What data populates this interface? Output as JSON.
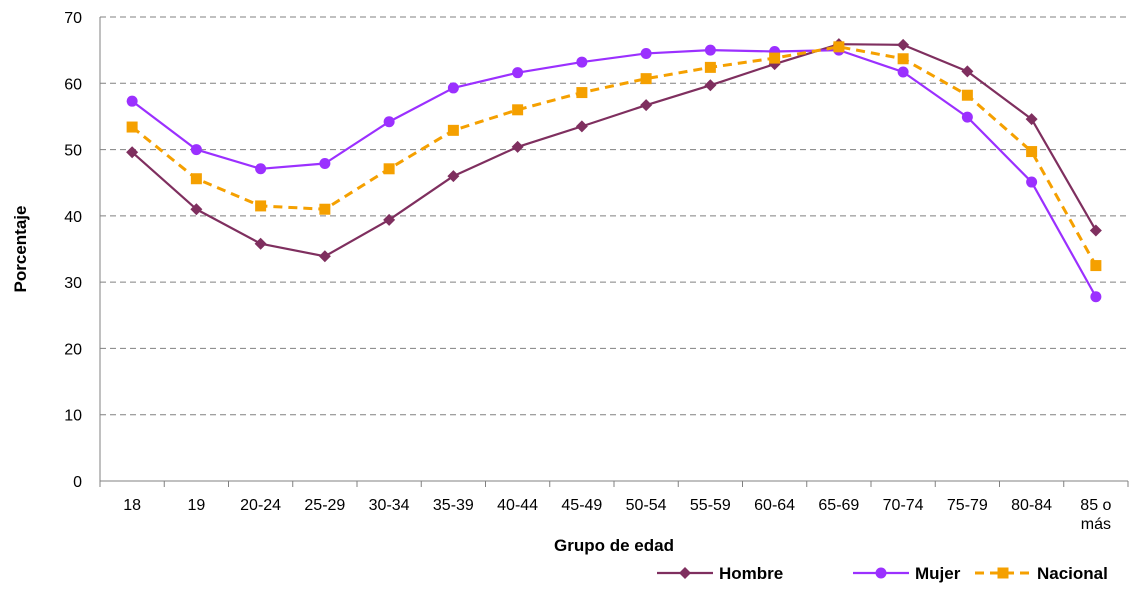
{
  "chart_data": {
    "type": "line",
    "xlabel": "Grupo de edad",
    "ylabel": "Porcentaje",
    "ylim": [
      0,
      70
    ],
    "yticks": [
      0,
      10,
      20,
      30,
      40,
      50,
      60,
      70
    ],
    "grid": "horizontal-dashed",
    "legend_position": "bottom-right",
    "categories": [
      "18",
      "19",
      "20-24",
      "25-29",
      "30-34",
      "35-39",
      "40-44",
      "45-49",
      "50-54",
      "55-59",
      "60-64",
      "65-69",
      "70-74",
      "75-79",
      "80-84",
      "85 o más"
    ],
    "series": [
      {
        "name": "Hombre",
        "color": "#7f2f5f",
        "marker": "diamond",
        "dashed": false,
        "values": [
          49.6,
          41.0,
          35.8,
          33.9,
          39.4,
          46.0,
          50.4,
          53.5,
          56.7,
          59.7,
          62.9,
          65.9,
          65.8,
          61.8,
          54.6,
          37.8
        ]
      },
      {
        "name": "Mujer",
        "color": "#9b30ff",
        "marker": "circle",
        "dashed": false,
        "values": [
          57.3,
          50.0,
          47.1,
          47.9,
          54.2,
          59.3,
          61.6,
          63.2,
          64.5,
          65.0,
          64.8,
          65.0,
          61.7,
          54.9,
          45.1,
          27.8
        ]
      },
      {
        "name": "Nacional",
        "color": "#f5a000",
        "marker": "square",
        "dashed": true,
        "values": [
          53.4,
          45.6,
          41.5,
          41.0,
          47.1,
          52.9,
          56.0,
          58.6,
          60.7,
          62.4,
          63.8,
          65.5,
          63.7,
          58.2,
          49.7,
          32.5
        ]
      }
    ]
  }
}
